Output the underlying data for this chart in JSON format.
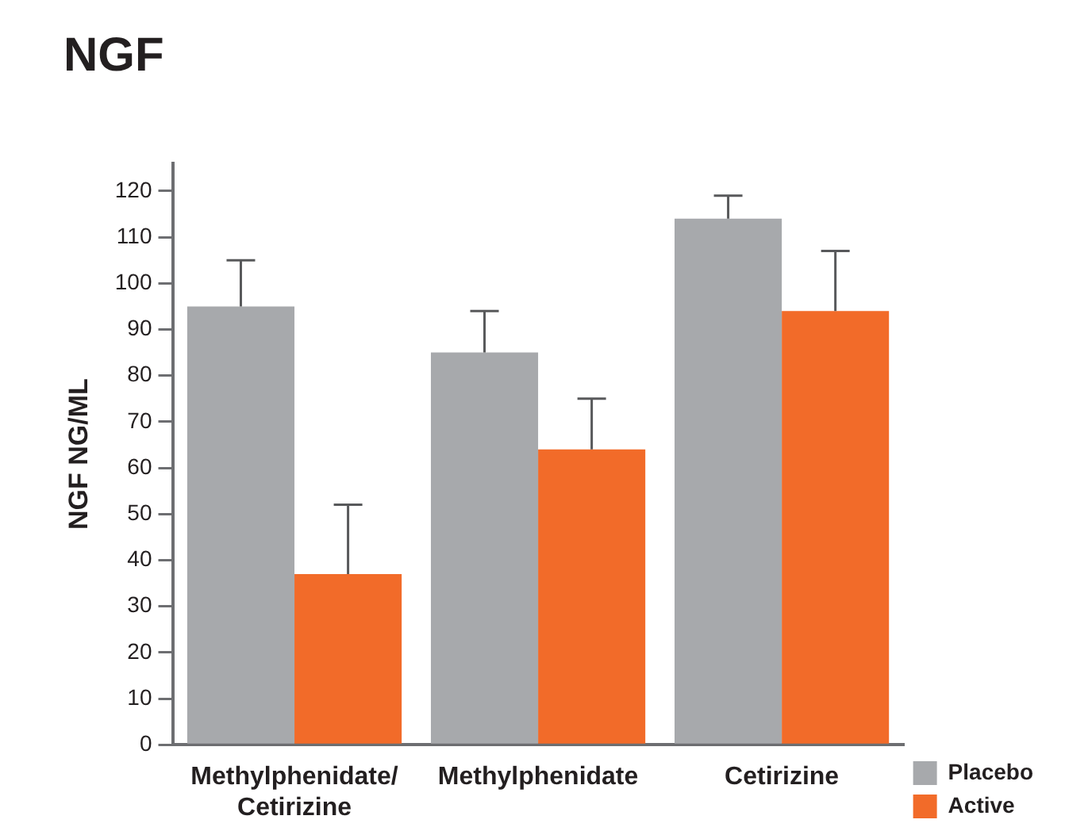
{
  "chart_data": {
    "type": "bar",
    "title": "NGF",
    "ylabel": "NGF NG/ML",
    "categories": [
      "Methylphenidate/ Cetirizine",
      "Methylphenidate",
      "Cetirizine"
    ],
    "series": [
      {
        "name": "Placebo",
        "color": "#a7a9ac",
        "values": [
          95,
          85,
          114
        ],
        "errors": [
          [
            95,
            105
          ],
          [
            85,
            94
          ],
          [
            114,
            119
          ]
        ]
      },
      {
        "name": "Active",
        "color": "#f26b29",
        "values": [
          37,
          64,
          94
        ],
        "errors": [
          [
            37,
            52
          ],
          [
            64,
            75
          ],
          [
            94,
            107
          ]
        ]
      }
    ],
    "ylim": [
      0,
      126
    ],
    "yticks": [
      0,
      10,
      20,
      30,
      40,
      50,
      60,
      70,
      80,
      90,
      100,
      110,
      120
    ],
    "legend": "bottom right"
  }
}
